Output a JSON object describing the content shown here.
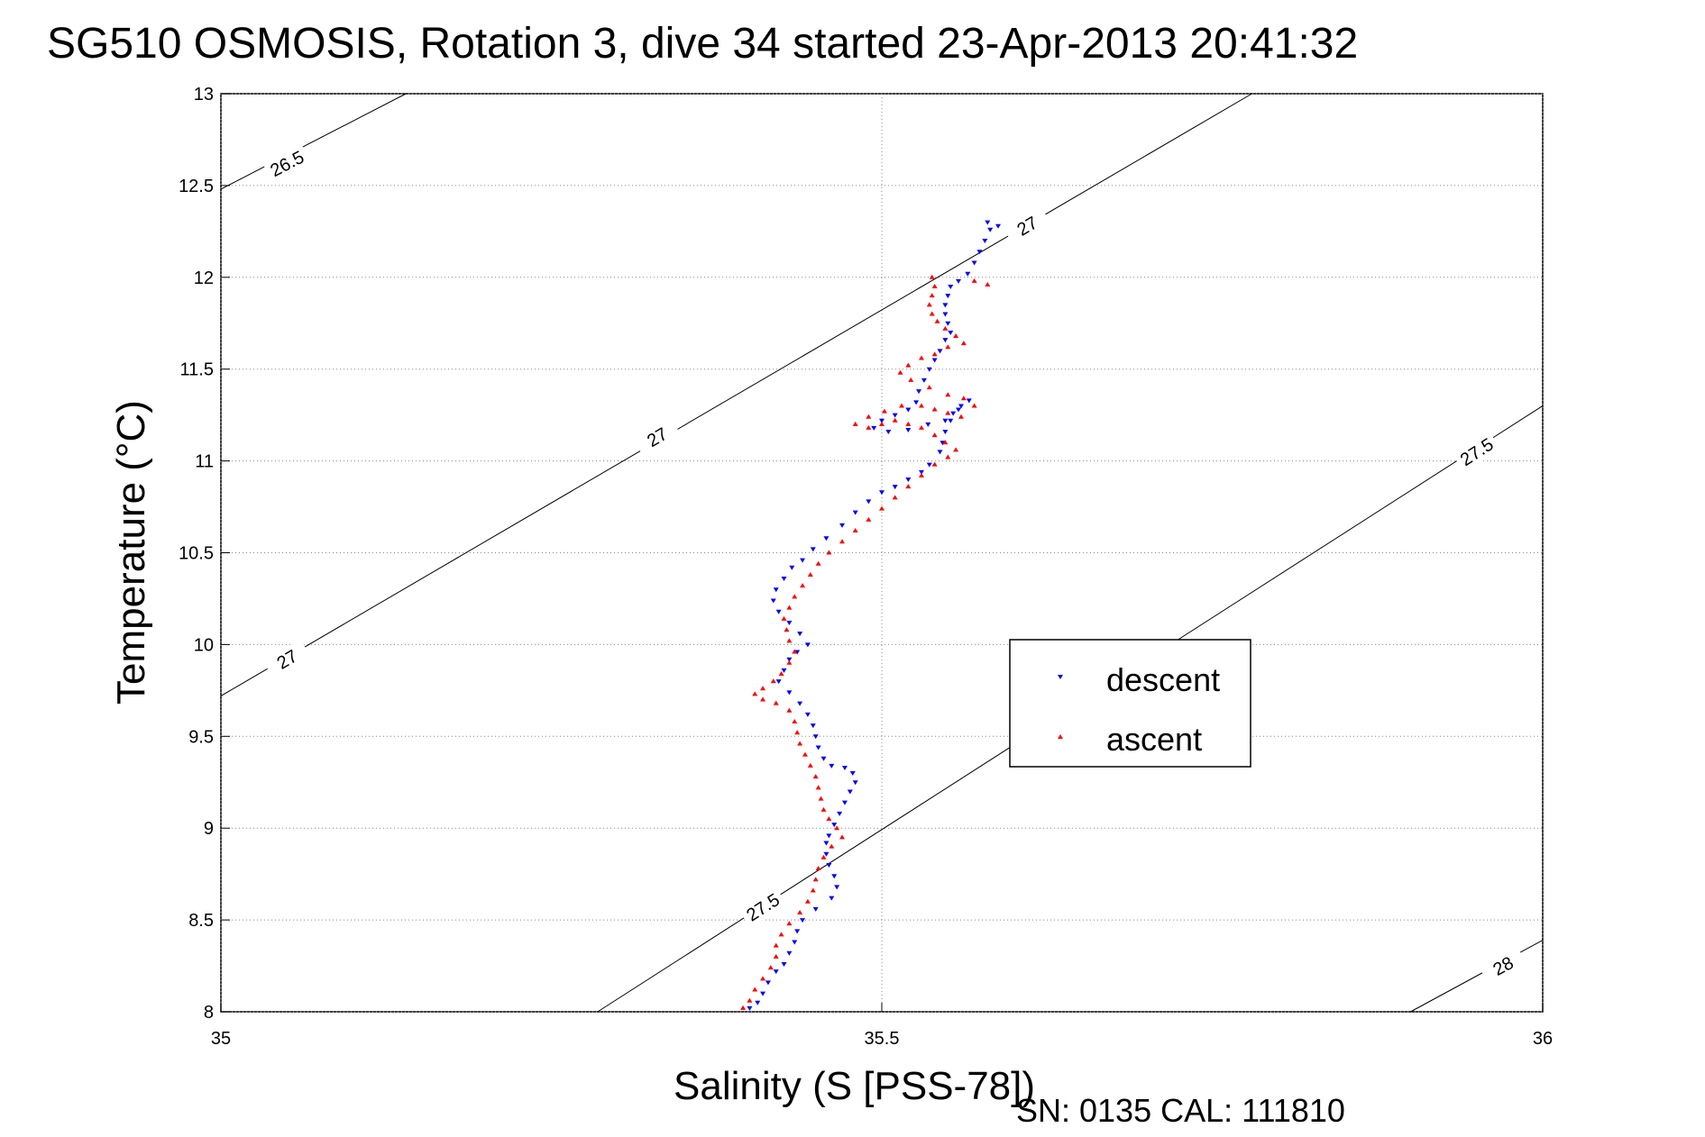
{
  "chart_data": {
    "type": "scatter",
    "title": "SG510 OSMOSIS, Rotation 3, dive 34 started 23-Apr-2013 20:41:32",
    "xlabel": "Salinity (S [PSS-78])",
    "ylabel": "Temperature (°C)",
    "footer": "SN: 0135  CAL: 111810",
    "xlim": [
      35,
      36
    ],
    "ylim": [
      8,
      13
    ],
    "x_ticks": [
      "35",
      "35.5",
      "36"
    ],
    "y_ticks": [
      "8",
      "8.5",
      "9",
      "9.5",
      "10",
      "10.5",
      "11",
      "11.5",
      "12",
      "12.5",
      "13"
    ],
    "grid": true,
    "legend_position": "right-middle",
    "legend": [
      "descent",
      "ascent"
    ],
    "density_contours": [
      {
        "label": "26.5",
        "points": [
          [
            35.0,
            12.48
          ],
          [
            35.14,
            13.0
          ]
        ],
        "label_at": [
          35.05,
          12.62
        ]
      },
      {
        "label": "27",
        "points": [
          [
            35.0,
            9.72
          ],
          [
            35.78,
            13.0
          ]
        ],
        "label_at": [
          [
            35.05,
            9.92
          ],
          [
            35.33,
            11.13
          ],
          [
            35.61,
            12.28
          ]
        ]
      },
      {
        "label": "27.5",
        "points": [
          [
            35.285,
            8.0
          ],
          [
            36.0,
            11.3
          ]
        ],
        "label_at": [
          [
            35.41,
            8.57
          ],
          [
            35.95,
            11.05
          ]
        ]
      },
      {
        "label": "28",
        "points": [
          [
            35.9,
            8.0
          ],
          [
            36.0,
            8.39
          ]
        ],
        "label_at": [
          [
            35.97,
            8.25
          ]
        ]
      }
    ],
    "series": [
      {
        "name": "descent",
        "color": "#0000ff",
        "marker": "triangle-down",
        "points": [
          [
            35.58,
            12.3
          ],
          [
            35.588,
            12.28
          ],
          [
            35.582,
            12.26
          ],
          [
            35.578,
            12.2
          ],
          [
            35.574,
            12.14
          ],
          [
            35.57,
            12.08
          ],
          [
            35.565,
            12.02
          ],
          [
            35.558,
            11.98
          ],
          [
            35.552,
            11.95
          ],
          [
            35.55,
            11.9
          ],
          [
            35.548,
            11.85
          ],
          [
            35.548,
            11.8
          ],
          [
            35.55,
            11.75
          ],
          [
            35.552,
            11.7
          ],
          [
            35.548,
            11.66
          ],
          [
            35.544,
            11.6
          ],
          [
            35.54,
            11.55
          ],
          [
            35.536,
            11.5
          ],
          [
            35.532,
            11.44
          ],
          [
            35.528,
            11.38
          ],
          [
            35.526,
            11.32
          ],
          [
            35.52,
            11.28
          ],
          [
            35.51,
            11.25
          ],
          [
            35.5,
            11.22
          ],
          [
            35.494,
            11.18
          ],
          [
            35.505,
            11.16
          ],
          [
            35.52,
            11.17
          ],
          [
            35.535,
            11.2
          ],
          [
            35.548,
            11.22
          ],
          [
            35.554,
            11.26
          ],
          [
            35.56,
            11.3
          ],
          [
            35.566,
            11.33
          ],
          [
            35.558,
            11.28
          ],
          [
            35.552,
            11.22
          ],
          [
            35.548,
            11.16
          ],
          [
            35.546,
            11.1
          ],
          [
            35.544,
            11.05
          ],
          [
            35.536,
            10.98
          ],
          [
            35.53,
            10.94
          ],
          [
            35.52,
            10.9
          ],
          [
            35.51,
            10.86
          ],
          [
            35.5,
            10.83
          ],
          [
            35.49,
            10.78
          ],
          [
            35.48,
            10.72
          ],
          [
            35.47,
            10.65
          ],
          [
            35.458,
            10.58
          ],
          [
            35.448,
            10.52
          ],
          [
            35.44,
            10.46
          ],
          [
            35.432,
            10.42
          ],
          [
            35.426,
            10.36
          ],
          [
            35.42,
            10.3
          ],
          [
            35.418,
            10.24
          ],
          [
            35.422,
            10.18
          ],
          [
            35.43,
            10.12
          ],
          [
            35.438,
            10.06
          ],
          [
            35.444,
            10.0
          ],
          [
            35.436,
            9.96
          ],
          [
            35.43,
            9.92
          ],
          [
            35.426,
            9.86
          ],
          [
            35.422,
            9.8
          ],
          [
            35.43,
            9.74
          ],
          [
            35.438,
            9.68
          ],
          [
            35.444,
            9.62
          ],
          [
            35.448,
            9.56
          ],
          [
            35.45,
            9.5
          ],
          [
            35.452,
            9.44
          ],
          [
            35.456,
            9.38
          ],
          [
            35.462,
            9.34
          ],
          [
            35.472,
            9.33
          ],
          [
            35.478,
            9.3
          ],
          [
            35.48,
            9.25
          ],
          [
            35.476,
            9.2
          ],
          [
            35.472,
            9.14
          ],
          [
            35.468,
            9.08
          ],
          [
            35.464,
            9.02
          ],
          [
            35.46,
            8.96
          ],
          [
            35.458,
            8.92
          ],
          [
            35.458,
            8.86
          ],
          [
            35.46,
            8.8
          ],
          [
            35.464,
            8.74
          ],
          [
            35.466,
            8.68
          ],
          [
            35.462,
            8.62
          ],
          [
            35.45,
            8.56
          ],
          [
            35.44,
            8.5
          ],
          [
            35.436,
            8.44
          ],
          [
            35.434,
            8.38
          ],
          [
            35.43,
            8.32
          ],
          [
            35.426,
            8.26
          ],
          [
            35.42,
            8.22
          ],
          [
            35.414,
            8.16
          ],
          [
            35.41,
            8.1
          ],
          [
            35.406,
            8.05
          ],
          [
            35.4,
            8.02
          ]
        ]
      },
      {
        "name": "ascent",
        "color": "#ff0000",
        "marker": "triangle-up",
        "points": [
          [
            35.395,
            8.02
          ],
          [
            35.4,
            8.06
          ],
          [
            35.404,
            8.12
          ],
          [
            35.41,
            8.18
          ],
          [
            35.416,
            8.24
          ],
          [
            35.42,
            8.3
          ],
          [
            35.42,
            8.36
          ],
          [
            35.424,
            8.42
          ],
          [
            35.43,
            8.48
          ],
          [
            35.438,
            8.54
          ],
          [
            35.444,
            8.6
          ],
          [
            35.448,
            8.66
          ],
          [
            35.45,
            8.72
          ],
          [
            35.452,
            8.78
          ],
          [
            35.456,
            8.84
          ],
          [
            35.462,
            8.9
          ],
          [
            35.47,
            8.95
          ],
          [
            35.466,
            9.0
          ],
          [
            35.46,
            9.05
          ],
          [
            35.456,
            9.1
          ],
          [
            35.454,
            9.16
          ],
          [
            35.452,
            9.22
          ],
          [
            35.45,
            9.28
          ],
          [
            35.446,
            9.34
          ],
          [
            35.442,
            9.4
          ],
          [
            35.438,
            9.46
          ],
          [
            35.436,
            9.52
          ],
          [
            35.434,
            9.58
          ],
          [
            35.43,
            9.64
          ],
          [
            35.42,
            9.68
          ],
          [
            35.41,
            9.7
          ],
          [
            35.404,
            9.73
          ],
          [
            35.41,
            9.76
          ],
          [
            35.418,
            9.8
          ],
          [
            35.424,
            9.84
          ],
          [
            35.43,
            9.9
          ],
          [
            35.434,
            9.96
          ],
          [
            35.43,
            10.02
          ],
          [
            35.428,
            10.08
          ],
          [
            35.426,
            10.14
          ],
          [
            35.43,
            10.2
          ],
          [
            35.434,
            10.26
          ],
          [
            35.44,
            10.32
          ],
          [
            35.446,
            10.38
          ],
          [
            35.452,
            10.44
          ],
          [
            35.46,
            10.5
          ],
          [
            35.47,
            10.56
          ],
          [
            35.48,
            10.62
          ],
          [
            35.49,
            10.68
          ],
          [
            35.5,
            10.74
          ],
          [
            35.51,
            10.8
          ],
          [
            35.52,
            10.86
          ],
          [
            35.53,
            10.92
          ],
          [
            35.54,
            10.98
          ],
          [
            35.55,
            11.02
          ],
          [
            35.556,
            11.06
          ],
          [
            35.548,
            11.1
          ],
          [
            35.54,
            11.14
          ],
          [
            35.53,
            11.18
          ],
          [
            35.52,
            11.2
          ],
          [
            35.51,
            11.22
          ],
          [
            35.5,
            11.2
          ],
          [
            35.49,
            11.18
          ],
          [
            35.48,
            11.2
          ],
          [
            35.49,
            11.24
          ],
          [
            35.502,
            11.27
          ],
          [
            35.515,
            11.3
          ],
          [
            35.53,
            11.3
          ],
          [
            35.54,
            11.28
          ],
          [
            35.55,
            11.26
          ],
          [
            35.56,
            11.24
          ],
          [
            35.57,
            11.3
          ],
          [
            35.562,
            11.34
          ],
          [
            35.55,
            11.36
          ],
          [
            35.536,
            11.4
          ],
          [
            35.522,
            11.44
          ],
          [
            35.514,
            11.48
          ],
          [
            35.52,
            11.52
          ],
          [
            35.53,
            11.56
          ],
          [
            35.54,
            11.58
          ],
          [
            35.55,
            11.62
          ],
          [
            35.562,
            11.64
          ],
          [
            35.556,
            11.68
          ],
          [
            35.548,
            11.72
          ],
          [
            35.542,
            11.76
          ],
          [
            35.538,
            11.8
          ],
          [
            35.536,
            11.85
          ],
          [
            35.538,
            11.9
          ],
          [
            35.54,
            11.95
          ],
          [
            35.538,
            12.0
          ],
          [
            35.57,
            11.98
          ],
          [
            35.58,
            11.96
          ]
        ]
      }
    ]
  }
}
